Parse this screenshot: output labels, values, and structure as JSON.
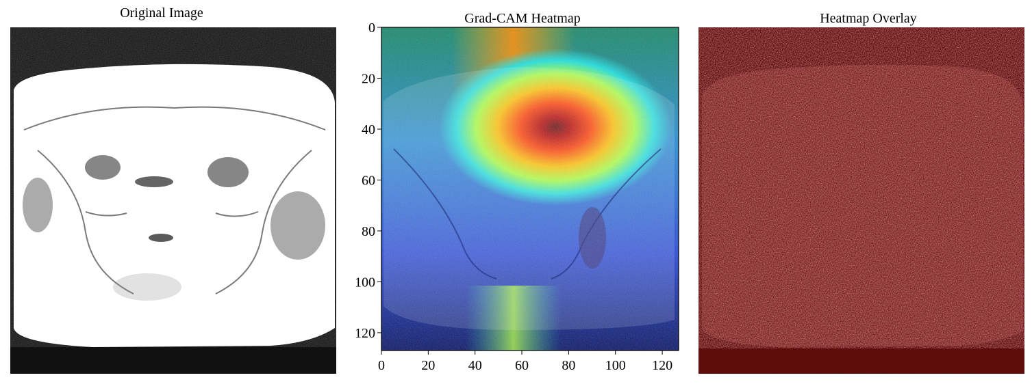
{
  "titles": {
    "original": "Original Image",
    "heatmap": "Grad-CAM Heatmap",
    "overlay": "Heatmap Overlay"
  },
  "heatmap_axes": {
    "y_ticks": [
      "0",
      "20",
      "40",
      "60",
      "80",
      "100",
      "120"
    ],
    "x_ticks": [
      "0",
      "20",
      "40",
      "60",
      "80",
      "100",
      "120"
    ],
    "xlim": [
      0,
      127
    ],
    "ylim": [
      0,
      127
    ]
  },
  "colors": {
    "overlay_tint": "#6b0d0d",
    "colormap": "jet"
  }
}
